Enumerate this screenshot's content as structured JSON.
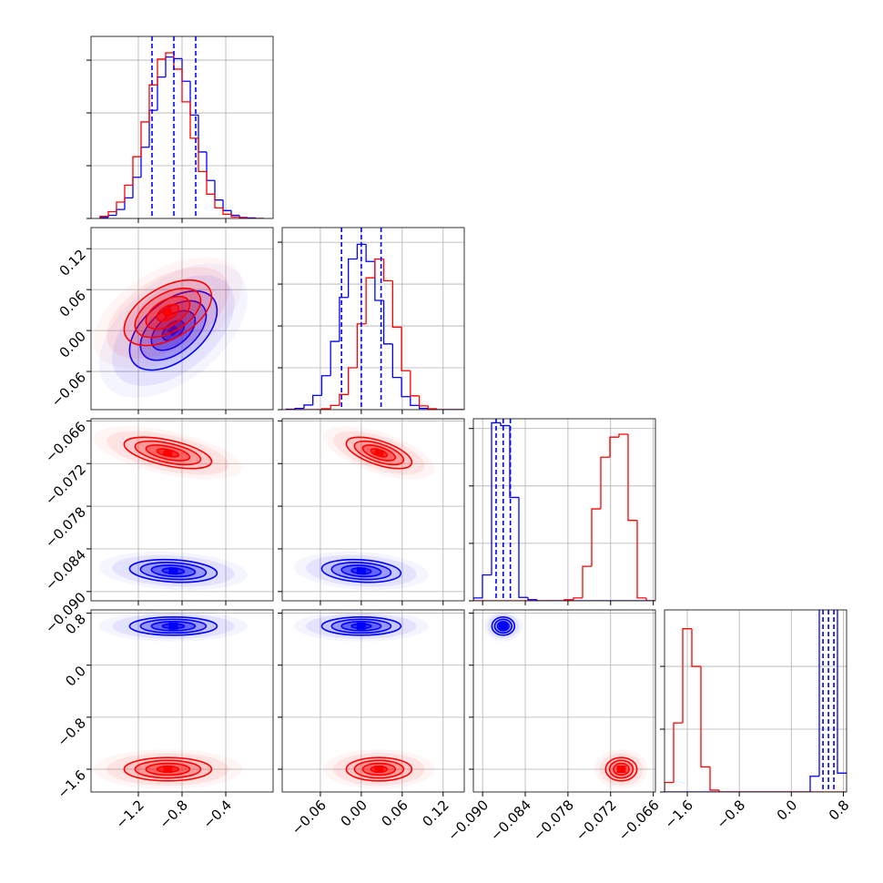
{
  "chart_data": {
    "type": "corner",
    "series": [
      {
        "color": "#0000ff",
        "mean": [
          -0.88,
          0.0,
          -0.0871,
          0.6
        ],
        "std": [
          0.2,
          0.029,
          0.0008,
          0.07
        ],
        "corr": [
          [],
          [
            0.5
          ],
          [
            -0.2,
            -0.2
          ],
          [
            0,
            0,
            0
          ]
        ]
      },
      {
        "color": "#ff0000",
        "mean": [
          -0.93,
          0.026,
          -0.0705,
          -1.6
        ],
        "std": [
          0.2,
          0.024,
          0.0011,
          0.09
        ],
        "corr": [
          [],
          [
            0.5
          ],
          [
            -0.55,
            -0.6
          ],
          [
            0,
            0,
            0
          ]
        ]
      }
    ],
    "params": [
      {
        "lim": [
          -1.633,
          0.033
        ],
        "ticks": [
          {
            "value": -1.2,
            "label": "−1.2"
          },
          {
            "value": -0.8,
            "label": "−0.8"
          },
          {
            "value": -0.4,
            "label": "−0.4"
          }
        ]
      },
      {
        "lim": [
          -0.116,
          0.151
        ],
        "ticks": [
          {
            "value": -0.06,
            "label": "−0.06"
          },
          {
            "value": 0,
            "label": "0.00"
          },
          {
            "value": 0.06,
            "label": "0.06"
          },
          {
            "value": 0.12,
            "label": "0.12"
          }
        ]
      },
      {
        "lim": [
          -0.0913,
          -0.0657
        ],
        "ticks": [
          {
            "value": -0.09,
            "label": "−0.090"
          },
          {
            "value": -0.084,
            "label": "−0.084"
          },
          {
            "value": -0.078,
            "label": "−0.078"
          },
          {
            "value": -0.072,
            "label": "−0.072"
          },
          {
            "value": -0.066,
            "label": "−0.066"
          }
        ]
      },
      {
        "lim": [
          -1.95,
          0.85
        ],
        "ticks": [
          {
            "value": -1.6,
            "label": "−1.6"
          },
          {
            "value": -0.8,
            "label": "−0.8"
          },
          {
            "value": 0,
            "label": "0.0"
          },
          {
            "value": 0.8,
            "label": "0.8"
          }
        ]
      }
    ],
    "hist": [
      {
        "bins": [
          -1.55,
          -1.475,
          -1.4,
          -1.325,
          -1.25,
          -1.175,
          -1.1,
          -1.025,
          -0.95,
          -0.875,
          -0.8,
          -0.725,
          -0.65,
          -0.575,
          -0.5,
          -0.425,
          -0.35,
          -0.275,
          -0.2,
          -0.125,
          -0.05
        ],
        "ylim": [
          0,
          3.45
        ],
        "yticks": [
          0,
          1,
          2,
          3
        ],
        "quantiles": [
          -1.075,
          -0.875,
          -0.675
        ],
        "counts": [
          [
            0.02,
            0.06,
            0.17,
            0.39,
            0.78,
            1.35,
            2.05,
            2.68,
            3.06,
            3.03,
            2.6,
            1.96,
            1.26,
            0.72,
            0.35,
            0.15,
            0.06,
            0.02,
            0.01,
            0
          ],
          [
            0.04,
            0.13,
            0.31,
            0.63,
            1.17,
            1.83,
            2.53,
            3.02,
            3.14,
            2.83,
            2.21,
            1.52,
            0.89,
            0.46,
            0.2,
            0.08,
            0.03,
            0.01,
            0,
            0
          ]
        ]
      },
      {
        "bins": [
          -0.11,
          -0.097,
          -0.084,
          -0.071,
          -0.058,
          -0.045,
          -0.032,
          -0.019,
          -0.006,
          0.007,
          0.02,
          0.033,
          0.046,
          0.059,
          0.072,
          0.085,
          0.098,
          0.111,
          0.124,
          0.137,
          0.15
        ],
        "ylim": [
          0,
          4.35
        ],
        "yticks": [
          0,
          1,
          2,
          3,
          4
        ],
        "quantiles": [
          -0.029,
          0,
          0.029
        ],
        "counts": [
          [
            0.01,
            0.03,
            0.11,
            0.34,
            0.81,
            1.63,
            2.68,
            3.6,
            3.95,
            3.54,
            2.61,
            1.57,
            0.77,
            0.31,
            0.1,
            0.03,
            0.01,
            0,
            0,
            0
          ],
          [
            0,
            0,
            0,
            0,
            0.02,
            0.1,
            0.36,
            1.0,
            2.05,
            3.15,
            3.6,
            3.08,
            1.97,
            0.93,
            0.33,
            0.09,
            0.02,
            0,
            0,
            0
          ]
        ]
      },
      {
        "bins": [
          -0.0913,
          -0.09002,
          -0.08874,
          -0.08746,
          -0.08618,
          -0.0849,
          -0.08362,
          -0.08234,
          -0.08106,
          -0.07978,
          -0.0785,
          -0.07722,
          -0.07594,
          -0.07466,
          -0.07338,
          -0.0721,
          -0.07082,
          -0.06954,
          -0.06826,
          -0.06698,
          -0.0657
        ],
        "ylim": [
          0,
          3.17
        ],
        "yticks": [
          0,
          1,
          2,
          3
        ],
        "quantiles": [
          -0.0881,
          -0.0871,
          -0.0861
        ],
        "counts": [
          [
            0.05,
            0.45,
            3.1,
            3.05,
            1.8,
            0.06,
            0.02,
            0,
            0,
            0,
            0,
            0,
            0,
            0,
            0,
            0,
            0,
            0,
            0,
            0
          ],
          [
            0,
            0,
            0,
            0,
            0,
            0,
            0,
            0,
            0,
            0,
            0.02,
            0.05,
            0.6,
            1.6,
            2.5,
            2.85,
            2.9,
            1.4,
            0.05,
            0
          ]
        ]
      },
      {
        "bins": [
          -1.95,
          -1.81,
          -1.67,
          -1.53,
          -1.39,
          -1.25,
          -1.11,
          -0.97,
          -0.83,
          -0.69,
          -0.55,
          -0.41,
          -0.27,
          -0.13,
          0.01,
          0.15,
          0.29,
          0.43,
          0.57,
          0.71,
          0.85
        ],
        "ylim": [
          0,
          2.9
        ],
        "yticks": [
          0,
          1,
          2
        ],
        "quantiles": [
          0.487,
          0.571,
          0.655
        ],
        "counts": [
          [
            0,
            0,
            0,
            0,
            0,
            0,
            0,
            0,
            0,
            0,
            0,
            0,
            0,
            0,
            0,
            0,
            0.25,
            3.0,
            3.0,
            0.3
          ],
          [
            0.15,
            1.1,
            2.6,
            2.0,
            0.4,
            0.03,
            0,
            0,
            0,
            0,
            0,
            0,
            0,
            0,
            0,
            0,
            0,
            0,
            0,
            0
          ]
        ]
      }
    ]
  }
}
